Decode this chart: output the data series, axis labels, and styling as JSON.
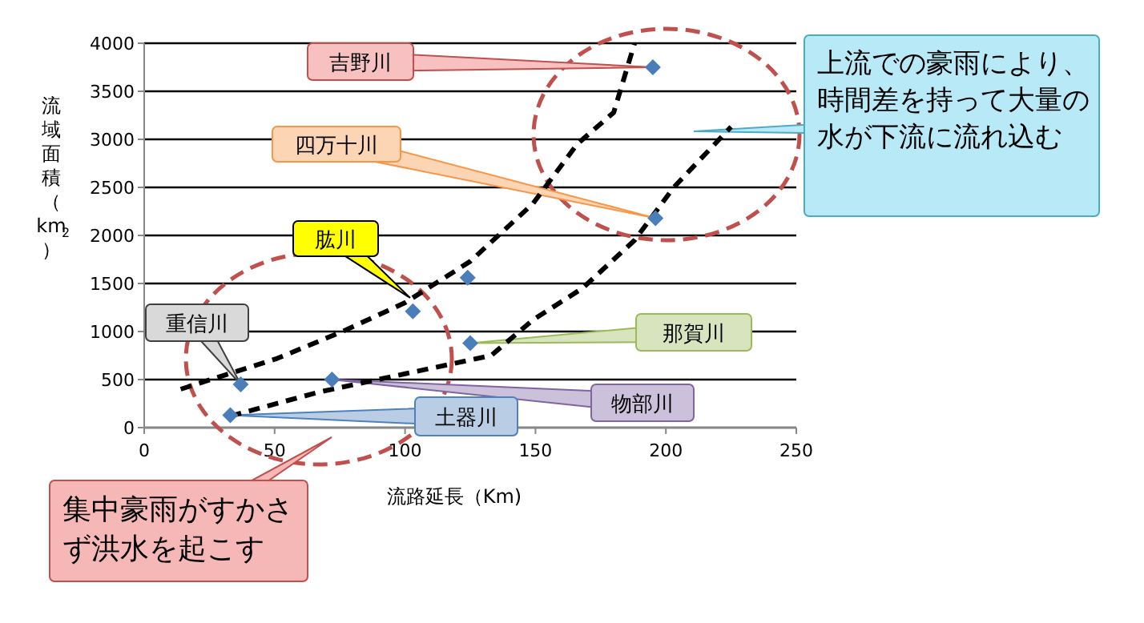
{
  "chart_data": {
    "type": "scatter",
    "xlabel": "流路延長（Km)",
    "ylabel": "流域面積（km$^{2}$）",
    "xlim": [
      0,
      250
    ],
    "xticks": [
      0,
      50,
      100,
      150,
      200,
      250
    ],
    "ylim": [
      0,
      4000
    ],
    "yticks": [
      0,
      500,
      1000,
      1500,
      2000,
      2500,
      3000,
      3500,
      4000
    ],
    "grid": "y",
    "marker": "diamond",
    "series": [
      {
        "color": "#4a7ebb",
        "x": [
          33,
          37,
          72,
          103,
          124,
          125,
          195,
          196
        ],
        "values": [
          130,
          450,
          500,
          1210,
          1560,
          880,
          3750,
          2180
        ]
      },
      {
        "type": "line",
        "marker": "none",
        "line_style": "dashed",
        "color": "#000000",
        "x": [
          14,
          51,
          76,
          100,
          125,
          149,
          166,
          180,
          188
        ],
        "values": [
          400,
          720,
          1000,
          1300,
          1730,
          2330,
          2950,
          3280,
          4000
        ]
      },
      {
        "type": "line",
        "marker": "none",
        "line_style": "dashed",
        "color": "#000000",
        "x": [
          33,
          67,
          100,
          133,
          149,
          168,
          188,
          203,
          225
        ],
        "values": [
          120,
          370,
          560,
          750,
          1120,
          1450,
          1950,
          2500,
          3130
        ]
      }
    ],
    "annotations": [
      {
        "text": "吉野川",
        "x": 195,
        "y": 3750
      },
      {
        "text": "四万十川",
        "x": 196,
        "y": 2180
      },
      "肱川",
      {
        "text": "重信川",
        "x": 37,
        "y": 450
      },
      {
        "text": "那賀川",
        "x": 125,
        "y": 880
      },
      {
        "text": "物部川",
        "x": 72,
        "y": 500
      },
      {
        "text": "土器川",
        "x": 33,
        "y": 130
      },
      "上流での豪雨により、時間差を持って大量の水が下流に流れ込む",
      "集中豪雨がすかさず洪水を起こす"
    ]
  }
}
